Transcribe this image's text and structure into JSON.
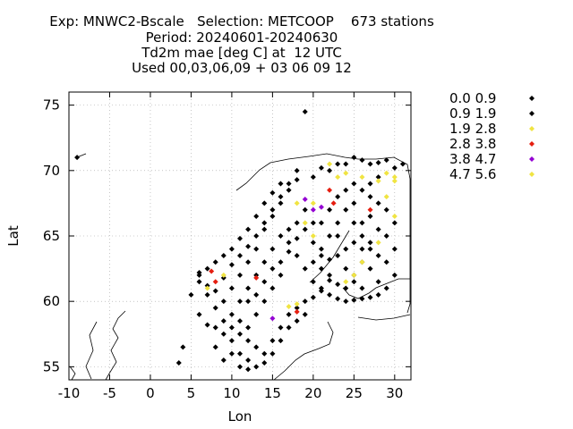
{
  "header": {
    "line1": "Exp: MNWC2-Bscale   Selection: METCOOP    673 stations",
    "line2": "Period: 20240601-20240630",
    "line3": "Td2m mae [deg C] at  12 UTC",
    "line4": "Used 00,03,06,09 + 03 06 09 12"
  },
  "chart_data": {
    "type": "scatter",
    "title": "Td2m mae [deg C] at  12 UTC",
    "xlabel": "Lon",
    "ylabel": "Lat",
    "xlim": [
      -10,
      32
    ],
    "ylim": [
      54,
      76
    ],
    "xticks": [
      -10,
      -5,
      0,
      5,
      10,
      15,
      20,
      25,
      30
    ],
    "yticks": [
      55,
      60,
      65,
      70,
      75
    ],
    "grid": true,
    "legend_position": "top-right outside",
    "series": [
      {
        "name": "0.0 0.9",
        "color": "#000000",
        "points": [
          [
            19,
            74.5
          ],
          [
            6,
            61.5
          ],
          [
            7,
            60.5
          ],
          [
            8,
            59.5
          ],
          [
            9,
            60
          ],
          [
            10,
            61
          ],
          [
            11,
            62
          ],
          [
            12,
            63
          ],
          [
            13,
            64
          ],
          [
            14,
            65.5
          ],
          [
            15,
            66.5
          ],
          [
            16,
            67.5
          ],
          [
            17,
            68.5
          ],
          [
            18,
            69.3
          ],
          [
            20,
            69.5
          ],
          [
            22,
            70
          ],
          [
            24,
            70.5
          ],
          [
            26,
            70.8
          ],
          [
            28,
            70.6
          ],
          [
            30,
            70.2
          ],
          [
            31,
            70.5
          ],
          [
            25,
            69
          ],
          [
            27,
            68
          ],
          [
            29,
            67
          ],
          [
            30,
            66
          ],
          [
            29,
            65
          ],
          [
            30,
            64
          ],
          [
            29,
            63
          ],
          [
            30,
            62
          ],
          [
            29,
            61
          ],
          [
            28,
            60.5
          ],
          [
            27,
            60.3
          ],
          [
            26,
            60.2
          ],
          [
            25,
            60.1
          ],
          [
            24,
            60
          ],
          [
            23,
            60.2
          ],
          [
            22,
            60.5
          ],
          [
            21,
            60.8
          ],
          [
            20,
            61.5
          ],
          [
            19,
            62.5
          ],
          [
            18,
            63.5
          ],
          [
            17,
            64.5
          ],
          [
            16,
            65
          ],
          [
            15,
            64
          ],
          [
            14,
            63
          ],
          [
            13,
            62
          ],
          [
            12,
            61
          ],
          [
            11,
            60
          ],
          [
            10,
            59
          ],
          [
            9,
            58.5
          ],
          [
            8,
            58
          ],
          [
            10,
            57
          ],
          [
            11,
            56
          ],
          [
            12,
            55.5
          ],
          [
            13,
            55
          ],
          [
            14,
            56
          ],
          [
            15,
            57
          ],
          [
            16,
            58
          ],
          [
            17,
            59
          ],
          [
            18,
            59.5
          ],
          [
            19,
            60
          ],
          [
            20,
            63
          ],
          [
            21,
            64
          ],
          [
            22,
            65
          ],
          [
            23,
            66
          ],
          [
            24,
            67
          ],
          [
            25,
            66
          ],
          [
            26,
            65
          ],
          [
            27,
            64
          ],
          [
            26,
            63
          ],
          [
            25,
            62
          ],
          [
            24,
            62.5
          ],
          [
            23,
            63.5
          ],
          [
            22,
            62
          ],
          [
            21,
            62.5
          ],
          [
            20,
            66
          ],
          [
            19,
            67
          ],
          [
            18,
            66
          ],
          [
            17,
            65.5
          ],
          [
            16,
            62
          ],
          [
            15,
            61
          ],
          [
            14,
            60
          ],
          [
            13,
            59
          ],
          [
            12,
            58
          ],
          [
            11,
            57.5
          ],
          [
            10,
            56
          ],
          [
            11,
            55
          ],
          [
            12,
            54.8
          ],
          [
            9,
            55.5
          ],
          [
            8,
            56.5
          ],
          [
            7,
            58.2
          ],
          [
            6,
            59
          ],
          [
            5,
            60.5
          ],
          [
            6,
            62
          ],
          [
            7,
            62.5
          ],
          [
            8,
            63
          ],
          [
            9,
            63.5
          ],
          [
            10,
            64
          ],
          [
            11,
            64.8
          ],
          [
            12,
            65.5
          ],
          [
            13,
            66.5
          ],
          [
            14,
            67.5
          ],
          [
            15,
            68.3
          ],
          [
            16,
            69
          ],
          [
            4,
            56.5
          ],
          [
            3.5,
            55.3
          ],
          [
            -9,
            71
          ]
        ]
      },
      {
        "name": "0.9 1.9",
        "color": "#000000",
        "points": [
          [
            6,
            62.2
          ],
          [
            7,
            61.2
          ],
          [
            8,
            60.8
          ],
          [
            9,
            61.8
          ],
          [
            10,
            62.8
          ],
          [
            11,
            63.5
          ],
          [
            12,
            64.2
          ],
          [
            13,
            65
          ],
          [
            14,
            66
          ],
          [
            15,
            67
          ],
          [
            16,
            68
          ],
          [
            17,
            69
          ],
          [
            18,
            70
          ],
          [
            21,
            70.2
          ],
          [
            23,
            70.5
          ],
          [
            25,
            71
          ],
          [
            27,
            70.5
          ],
          [
            29,
            70.8
          ],
          [
            28,
            69.5
          ],
          [
            27,
            69
          ],
          [
            26,
            68.5
          ],
          [
            28,
            67.5
          ],
          [
            27,
            66.5
          ],
          [
            28,
            65.5
          ],
          [
            27,
            64.5
          ],
          [
            28,
            63.5
          ],
          [
            27,
            62.5
          ],
          [
            28,
            61.5
          ],
          [
            26,
            61
          ],
          [
            25,
            61.5
          ],
          [
            24,
            61
          ],
          [
            23,
            61.3
          ],
          [
            22,
            61.6
          ],
          [
            21,
            61
          ],
          [
            20,
            60.3
          ],
          [
            19,
            59
          ],
          [
            18,
            58.5
          ],
          [
            17,
            58
          ],
          [
            16,
            57
          ],
          [
            15,
            56
          ],
          [
            14,
            55.3
          ],
          [
            13,
            56.5
          ],
          [
            12,
            57
          ],
          [
            11,
            58.5
          ],
          [
            10,
            58
          ],
          [
            9,
            57.5
          ],
          [
            12,
            60
          ],
          [
            13,
            60.5
          ],
          [
            14,
            61.5
          ],
          [
            15,
            62.5
          ],
          [
            16,
            63
          ],
          [
            17,
            63.8
          ],
          [
            18,
            64.8
          ],
          [
            19,
            65.5
          ],
          [
            20,
            64.5
          ],
          [
            21,
            66
          ],
          [
            22,
            67
          ],
          [
            23,
            68
          ],
          [
            24,
            68.5
          ],
          [
            25,
            67.5
          ],
          [
            26,
            66
          ],
          [
            24,
            64
          ],
          [
            23,
            65
          ],
          [
            22,
            63.2
          ],
          [
            21,
            63.5
          ],
          [
            25,
            64.5
          ],
          [
            26,
            64
          ]
        ]
      },
      {
        "name": "1.9 2.8",
        "color": "#f0e442",
        "points": [
          [
            7,
            61
          ],
          [
            9,
            62
          ],
          [
            18,
            67.5
          ],
          [
            19,
            66
          ],
          [
            20,
            65
          ],
          [
            22,
            70.5
          ],
          [
            23,
            69.5
          ],
          [
            24,
            69.8
          ],
          [
            26,
            69.5
          ],
          [
            28,
            69.2
          ],
          [
            29,
            69.8
          ],
          [
            30,
            69.5
          ],
          [
            29,
            68
          ],
          [
            30,
            66.5
          ],
          [
            28,
            64.5
          ],
          [
            26,
            63
          ],
          [
            25,
            62
          ],
          [
            24,
            61.5
          ],
          [
            18,
            59.8
          ],
          [
            17,
            59.6
          ],
          [
            20,
            67.5
          ]
        ]
      },
      {
        "name": "2.8 3.8",
        "color": "#e51e10",
        "points": [
          [
            7.5,
            62.3
          ],
          [
            8,
            61.5
          ],
          [
            13,
            61.8
          ],
          [
            18,
            59.2
          ],
          [
            22,
            68.5
          ],
          [
            22.5,
            67.5
          ],
          [
            27,
            67
          ]
        ]
      },
      {
        "name": "3.8 4.7",
        "color": "#9400d3",
        "points": [
          [
            15,
            58.7
          ],
          [
            19,
            67.8
          ],
          [
            21,
            67.2
          ],
          [
            20,
            67
          ]
        ]
      },
      {
        "name": "4.7 5.6",
        "color": "#f0e442",
        "points": [
          [
            30,
            69.2
          ]
        ]
      }
    ]
  }
}
